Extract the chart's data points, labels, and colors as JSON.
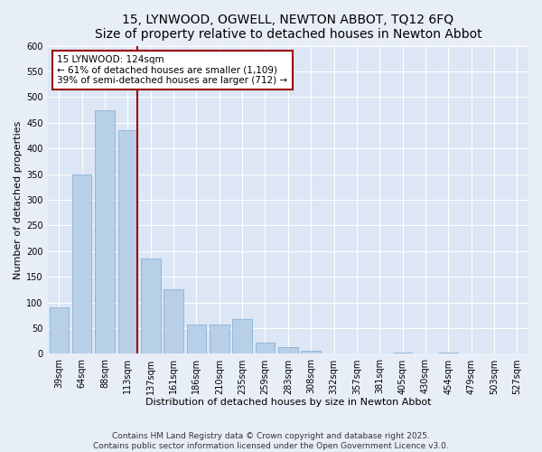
{
  "title": "15, LYNWOOD, OGWELL, NEWTON ABBOT, TQ12 6FQ",
  "subtitle": "Size of property relative to detached houses in Newton Abbot",
  "xlabel": "Distribution of detached houses by size in Newton Abbot",
  "ylabel": "Number of detached properties",
  "categories": [
    "39sqm",
    "64sqm",
    "88sqm",
    "113sqm",
    "137sqm",
    "161sqm",
    "186sqm",
    "210sqm",
    "235sqm",
    "259sqm",
    "283sqm",
    "308sqm",
    "332sqm",
    "357sqm",
    "381sqm",
    "405sqm",
    "430sqm",
    "454sqm",
    "479sqm",
    "503sqm",
    "527sqm"
  ],
  "values": [
    90,
    350,
    475,
    435,
    185,
    125,
    57,
    57,
    67,
    22,
    13,
    6,
    0,
    0,
    0,
    3,
    0,
    2,
    0,
    0,
    0
  ],
  "bar_color": "#b8cfe8",
  "bar_edge_color": "#7aaad0",
  "vline_x_index": 3,
  "vline_color": "#990000",
  "annotation_text": "15 LYNWOOD: 124sqm\n← 61% of detached houses are smaller (1,109)\n39% of semi-detached houses are larger (712) →",
  "annotation_box_color": "#ffffff",
  "annotation_box_edge_color": "#990000",
  "ylim": [
    0,
    600
  ],
  "yticks": [
    0,
    50,
    100,
    150,
    200,
    250,
    300,
    350,
    400,
    450,
    500,
    550,
    600
  ],
  "background_color": "#e8eef7",
  "plot_background_color": "#dce6f5",
  "grid_color": "#ffffff",
  "footer_text": "Contains HM Land Registry data © Crown copyright and database right 2025.\nContains public sector information licensed under the Open Government Licence v3.0.",
  "title_fontsize": 10,
  "xlabel_fontsize": 8,
  "ylabel_fontsize": 8,
  "tick_fontsize": 7,
  "annotation_fontsize": 7.5,
  "footer_fontsize": 6.5,
  "font_family": "DejaVu Sans"
}
